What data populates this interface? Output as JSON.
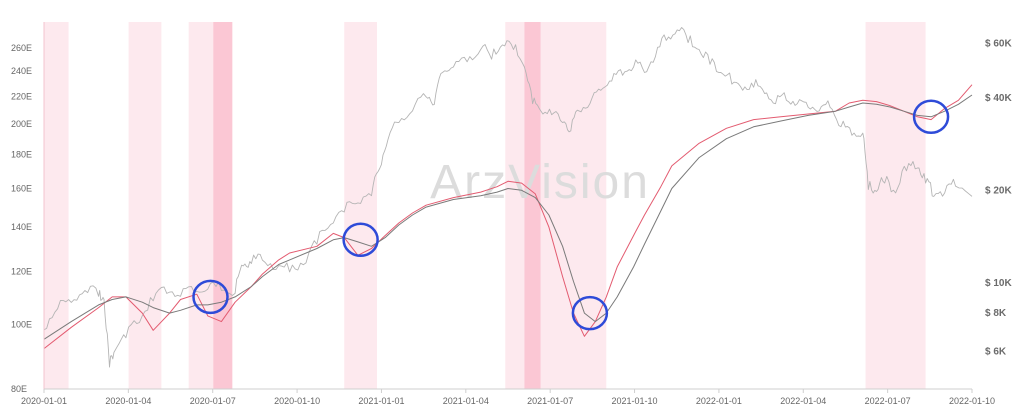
{
  "watermark": "ArzVision",
  "colors": {
    "red_series": "#e35b70",
    "gray_series": "#b5b5b5",
    "dark_gray_series": "#7a7a7a",
    "band_light": "#fde9ee",
    "band_strong": "#fbc7d4",
    "circle": "#2e4bd8"
  },
  "chart_data": {
    "type": "line",
    "x_ticks": [
      "2020-01-01",
      "2020-01-04",
      "2020-01-07",
      "2020-01-10",
      "2021-01-01",
      "2021-01-04",
      "2021-01-07",
      "2021-01-10",
      "2022-01-01",
      "2022-01-04",
      "2022-01-07",
      "2022-01-10"
    ],
    "y_left": {
      "ticks": [
        "80E",
        "100E",
        "120E",
        "140E",
        "160E",
        "180E",
        "200E",
        "220E",
        "240E",
        "260E"
      ],
      "range": [
        80,
        260
      ],
      "scale": "log"
    },
    "y_right": {
      "ticks": [
        "$ 6K",
        "$ 8K",
        "$ 10K",
        "$ 20K",
        "$ 40K",
        "$ 60K"
      ],
      "values": [
        6000,
        8000,
        10000,
        20000,
        40000,
        60000
      ],
      "scale": "log"
    },
    "grid": false,
    "shaded_periods": [
      {
        "start": 0.0,
        "end": 0.9,
        "intensity": "light"
      },
      {
        "start": 3.1,
        "end": 4.3,
        "intensity": "light"
      },
      {
        "start": 5.3,
        "end": 6.2,
        "intensity": "light"
      },
      {
        "start": 6.2,
        "end": 6.9,
        "intensity": "strong"
      },
      {
        "start": 11.0,
        "end": 12.2,
        "intensity": "light"
      },
      {
        "start": 16.9,
        "end": 17.6,
        "intensity": "light"
      },
      {
        "start": 17.6,
        "end": 18.2,
        "intensity": "strong"
      },
      {
        "start": 18.2,
        "end": 20.6,
        "intensity": "light"
      },
      {
        "start": 30.1,
        "end": 32.3,
        "intensity": "light"
      }
    ],
    "series": [
      {
        "color": "#b5b5b5",
        "axis": "right",
        "points": [
          [
            0,
            7000
          ],
          [
            0.5,
            8200
          ],
          [
            1,
            8600
          ],
          [
            1.5,
            9400
          ],
          [
            2,
            9000
          ],
          [
            2.2,
            8800
          ],
          [
            2.4,
            5300
          ],
          [
            2.6,
            6000
          ],
          [
            3,
            6600
          ],
          [
            3.5,
            7400
          ],
          [
            4,
            8700
          ],
          [
            4.5,
            9200
          ],
          [
            5,
            9000
          ],
          [
            5.5,
            9300
          ],
          [
            6,
            9500
          ],
          [
            6.5,
            9400
          ],
          [
            7,
            9200
          ],
          [
            7.3,
            11300
          ],
          [
            7.6,
            11500
          ],
          [
            8,
            11800
          ],
          [
            8.5,
            11000
          ],
          [
            9,
            10800
          ],
          [
            9.5,
            11400
          ],
          [
            10,
            13300
          ],
          [
            10.5,
            15400
          ],
          [
            11,
            16900
          ],
          [
            11.5,
            18100
          ],
          [
            12,
            19100
          ],
          [
            12.3,
            23400
          ],
          [
            12.6,
            29000
          ],
          [
            13,
            33000
          ],
          [
            13.5,
            36000
          ],
          [
            14,
            40000
          ],
          [
            14.3,
            37800
          ],
          [
            14.6,
            48000
          ],
          [
            15,
            50000
          ],
          [
            15.5,
            52000
          ],
          [
            16,
            57000
          ],
          [
            16.4,
            53000
          ],
          [
            16.8,
            59000
          ],
          [
            17.2,
            57000
          ],
          [
            17.6,
            50000
          ],
          [
            17.9,
            38000
          ],
          [
            18.2,
            36000
          ],
          [
            18.6,
            35000
          ],
          [
            19,
            33000
          ],
          [
            19.3,
            31000
          ],
          [
            19.6,
            36000
          ],
          [
            20,
            38000
          ],
          [
            20.4,
            42000
          ],
          [
            20.8,
            45000
          ],
          [
            21.2,
            47000
          ],
          [
            21.6,
            50000
          ],
          [
            22,
            48000
          ],
          [
            22.4,
            54000
          ],
          [
            22.8,
            61000
          ],
          [
            23.2,
            66000
          ],
          [
            23.6,
            60000
          ],
          [
            24,
            57000
          ],
          [
            24.4,
            51000
          ],
          [
            24.8,
            48000
          ],
          [
            25.2,
            44000
          ],
          [
            25.6,
            42000
          ],
          [
            26,
            43000
          ],
          [
            26.4,
            41000
          ],
          [
            26.8,
            38000
          ],
          [
            27.2,
            39000
          ],
          [
            27.6,
            38000
          ],
          [
            28,
            37000
          ],
          [
            28.4,
            36000
          ],
          [
            28.8,
            37000
          ],
          [
            29.2,
            32000
          ],
          [
            29.6,
            30000
          ],
          [
            30,
            30500
          ],
          [
            30.2,
            20000
          ],
          [
            30.5,
            19700
          ],
          [
            30.8,
            21000
          ],
          [
            31.2,
            19500
          ],
          [
            31.6,
            23000
          ],
          [
            32,
            23500
          ],
          [
            32.3,
            21000
          ],
          [
            32.6,
            19000
          ],
          [
            33,
            19500
          ],
          [
            33.4,
            20500
          ],
          [
            34,
            19000
          ]
        ]
      },
      {
        "color": "#e35b70",
        "axis": "left",
        "points": [
          [
            0,
            92
          ],
          [
            1,
            99
          ],
          [
            2,
            106
          ],
          [
            2.5,
            110
          ],
          [
            3,
            110
          ],
          [
            3.6,
            104
          ],
          [
            4,
            98
          ],
          [
            4.6,
            104
          ],
          [
            5,
            109
          ],
          [
            5.6,
            111
          ],
          [
            6,
            103
          ],
          [
            6.5,
            101
          ],
          [
            7,
            108
          ],
          [
            7.6,
            114
          ],
          [
            8,
            119
          ],
          [
            8.6,
            125
          ],
          [
            9,
            128
          ],
          [
            10,
            131
          ],
          [
            10.6,
            137
          ],
          [
            11,
            135
          ],
          [
            11.5,
            127
          ],
          [
            12,
            130
          ],
          [
            12.5,
            136
          ],
          [
            13,
            142
          ],
          [
            13.5,
            147
          ],
          [
            14,
            151
          ],
          [
            15,
            155
          ],
          [
            16,
            158
          ],
          [
            16.6,
            161
          ],
          [
            17,
            164
          ],
          [
            17.5,
            163
          ],
          [
            18,
            157
          ],
          [
            18.5,
            140
          ],
          [
            19,
            118
          ],
          [
            19.4,
            104
          ],
          [
            19.8,
            96
          ],
          [
            20.2,
            101
          ],
          [
            20.6,
            110
          ],
          [
            21,
            122
          ],
          [
            21.6,
            136
          ],
          [
            22,
            146
          ],
          [
            22.6,
            161
          ],
          [
            23,
            173
          ],
          [
            24,
            187
          ],
          [
            25,
            197
          ],
          [
            26,
            203
          ],
          [
            27,
            205
          ],
          [
            28,
            207
          ],
          [
            29,
            209
          ],
          [
            29.5,
            215
          ],
          [
            30,
            217
          ],
          [
            30.5,
            216
          ],
          [
            31,
            213
          ],
          [
            31.5,
            209
          ],
          [
            32,
            205
          ],
          [
            32.5,
            203
          ],
          [
            33,
            211
          ],
          [
            33.5,
            217
          ],
          [
            34,
            229
          ]
        ]
      },
      {
        "color": "#7a7a7a",
        "axis": "left",
        "points": [
          [
            0,
            95
          ],
          [
            1,
            101
          ],
          [
            2,
            107
          ],
          [
            2.5,
            109
          ],
          [
            3,
            110
          ],
          [
            3.6,
            108
          ],
          [
            4,
            106
          ],
          [
            4.6,
            104
          ],
          [
            5,
            105
          ],
          [
            5.6,
            107
          ],
          [
            6,
            107
          ],
          [
            6.5,
            108
          ],
          [
            7,
            110
          ],
          [
            7.6,
            114
          ],
          [
            8,
            118
          ],
          [
            8.6,
            123
          ],
          [
            9,
            125
          ],
          [
            10,
            130
          ],
          [
            10.6,
            134
          ],
          [
            11,
            135
          ],
          [
            11.5,
            133
          ],
          [
            12,
            131
          ],
          [
            12.5,
            135
          ],
          [
            13,
            141
          ],
          [
            13.5,
            146
          ],
          [
            14,
            150
          ],
          [
            15,
            154
          ],
          [
            16,
            156
          ],
          [
            16.6,
            158
          ],
          [
            17,
            160
          ],
          [
            17.5,
            159
          ],
          [
            18,
            155
          ],
          [
            18.5,
            146
          ],
          [
            19,
            131
          ],
          [
            19.4,
            116
          ],
          [
            19.8,
            104
          ],
          [
            20.2,
            101
          ],
          [
            20.6,
            104
          ],
          [
            21,
            110
          ],
          [
            21.6,
            122
          ],
          [
            22,
            132
          ],
          [
            22.6,
            148
          ],
          [
            23,
            160
          ],
          [
            24,
            178
          ],
          [
            25,
            190
          ],
          [
            26,
            198
          ],
          [
            27,
            202
          ],
          [
            28,
            206
          ],
          [
            29,
            209
          ],
          [
            29.5,
            212
          ],
          [
            30,
            215
          ],
          [
            30.5,
            214
          ],
          [
            31,
            212
          ],
          [
            31.5,
            209
          ],
          [
            32,
            206
          ],
          [
            32.5,
            205
          ],
          [
            33,
            209
          ],
          [
            33.5,
            214
          ],
          [
            34,
            221
          ]
        ]
      }
    ],
    "highlights": [
      {
        "x": 6.1,
        "y": 110
      },
      {
        "x": 11.6,
        "y": 134
      },
      {
        "x": 20.0,
        "y": 104
      },
      {
        "x": 32.5,
        "y": 205
      }
    ]
  }
}
